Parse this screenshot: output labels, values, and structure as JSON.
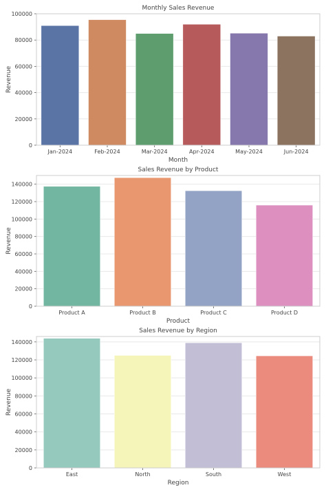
{
  "chart_data": [
    {
      "type": "bar",
      "title": "Monthly Sales Revenue",
      "xlabel": "Month",
      "ylabel": "Revenue",
      "categories": [
        "Jan-2024",
        "Feb-2024",
        "Mar-2024",
        "Apr-2024",
        "May-2024",
        "Jun-2024"
      ],
      "values": [
        91000,
        95500,
        85000,
        92000,
        85200,
        83000
      ],
      "colors": [
        "#5a74a6",
        "#cf8a62",
        "#5e9e6e",
        "#b75a5c",
        "#8677ad",
        "#8c7360"
      ],
      "ylim": [
        0,
        100000
      ],
      "yticks": [
        "0",
        "20000",
        "40000",
        "60000",
        "80000",
        "100000"
      ],
      "grid": true
    },
    {
      "type": "bar",
      "title": "Sales Revenue by Product",
      "xlabel": "Product",
      "ylabel": "Revenue",
      "categories": [
        "Product A",
        "Product B",
        "Product C",
        "Product D"
      ],
      "values": [
        137500,
        147500,
        132500,
        116000
      ],
      "colors": [
        "#72b6a1",
        "#e9976f",
        "#93a3c5",
        "#dd90c0"
      ],
      "ylim": [
        0,
        150000
      ],
      "yticks": [
        "0",
        "20000",
        "40000",
        "60000",
        "80000",
        "100000",
        "120000",
        "140000"
      ],
      "grid": true
    },
    {
      "type": "bar",
      "title": "Sales Revenue by Region",
      "xlabel": "Region",
      "ylabel": "Revenue",
      "categories": [
        "East",
        "North",
        "South",
        "West"
      ],
      "values": [
        144000,
        125000,
        139000,
        124500
      ],
      "colors": [
        "#96c9be",
        "#f5f5b9",
        "#c1bed6",
        "#ea8b7e"
      ],
      "ylim": [
        0,
        146000
      ],
      "yticks": [
        "0",
        "20000",
        "40000",
        "60000",
        "80000",
        "100000",
        "120000",
        "140000"
      ],
      "grid": true
    }
  ]
}
